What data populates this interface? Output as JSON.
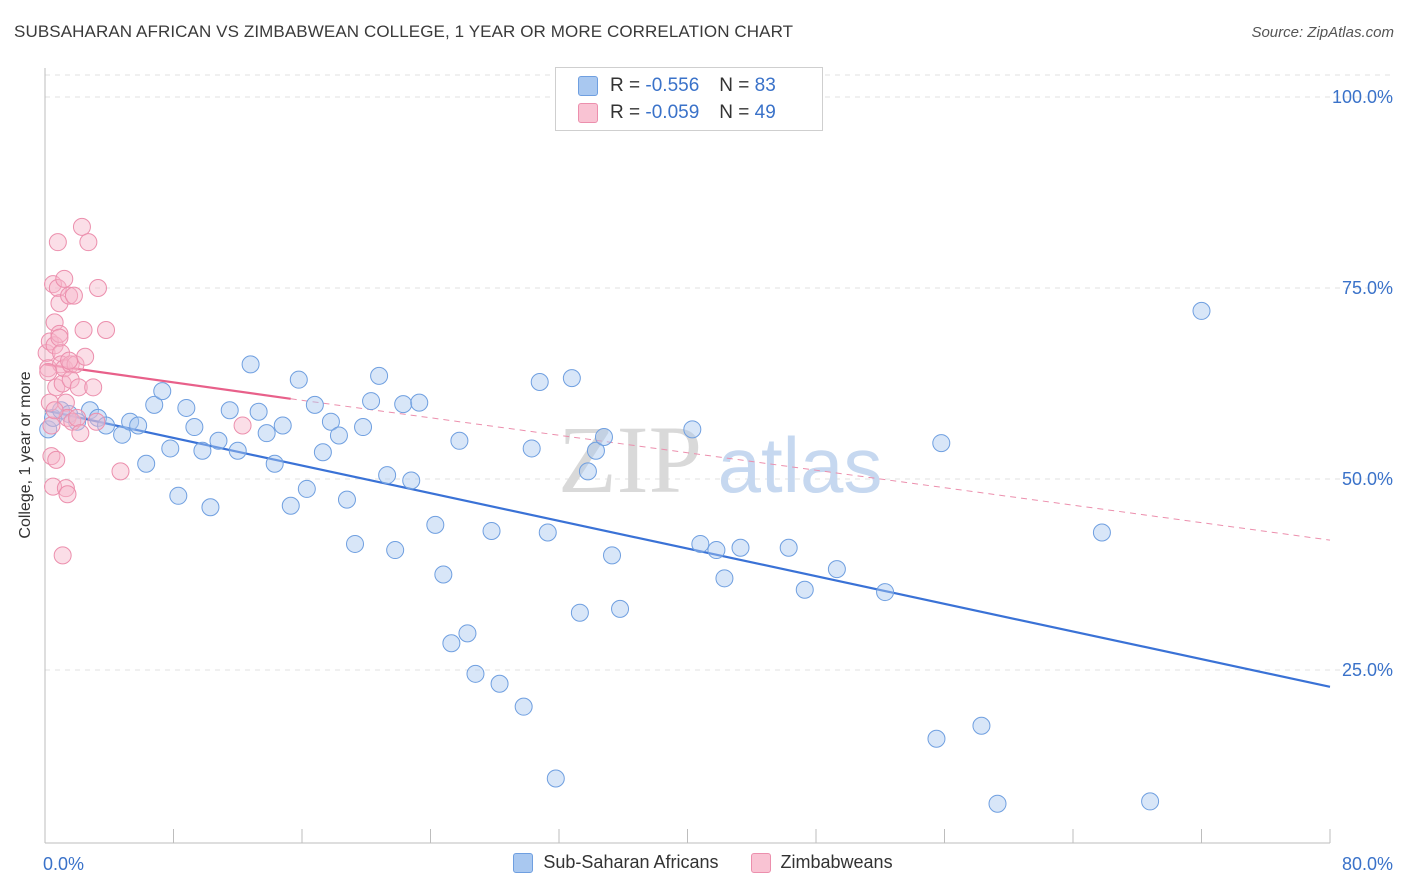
{
  "title": "SUBSAHARAN AFRICAN VS ZIMBABWEAN COLLEGE, 1 YEAR OR MORE CORRELATION CHART",
  "source": "Source: ZipAtlas.com",
  "watermark": {
    "zip": "ZIP",
    "atlas": "atlas"
  },
  "legend": {
    "rows": [
      {
        "r_label": "R =",
        "r_value": "-0.556",
        "n_label": "N =",
        "n_value": "83",
        "color": "#a9c8f0",
        "border": "#6f9fe0"
      },
      {
        "r_label": "R =",
        "r_value": "-0.059",
        "n_label": "N =",
        "n_value": "49",
        "color": "#f9c3d3",
        "border": "#ec8fad"
      }
    ]
  },
  "bottom_legend": [
    "Sub-Saharan Africans",
    "Zimbabweans"
  ],
  "chart_data": {
    "type": "scatter",
    "xlabel": "",
    "ylabel": "College, 1 year or more",
    "xlim": [
      0,
      80
    ],
    "ylim": [
      0,
      105
    ],
    "x_tick_labels": [
      "0.0%",
      "80.0%"
    ],
    "y_ticks": [
      25,
      50,
      75,
      100
    ],
    "y_tick_labels": [
      "25.0%",
      "50.0%",
      "75.0%",
      "100.0%"
    ],
    "grid": "horizontal dashed",
    "colors": {
      "blue": "#3a72d6",
      "blue_fill": "#a9c8f0",
      "pink": "#e8608a",
      "pink_fill": "#f7b5c9",
      "tick_label": "#3a72c9"
    },
    "series": [
      {
        "name": "Sub-Saharan Africans",
        "color": "#3a72d6",
        "trend": {
          "x": [
            0,
            80
          ],
          "y": [
            59.0,
            22.8
          ],
          "style": "solid"
        },
        "points": [
          [
            0.2,
            56.5
          ],
          [
            0.5,
            58.0
          ],
          [
            1.0,
            59.0
          ],
          [
            1.5,
            58.5
          ],
          [
            2.0,
            57.5
          ],
          [
            2.8,
            59.0
          ],
          [
            3.3,
            58.0
          ],
          [
            3.8,
            57.0
          ],
          [
            4.8,
            55.8
          ],
          [
            5.3,
            57.5
          ],
          [
            5.8,
            57.0
          ],
          [
            6.3,
            52.0
          ],
          [
            6.8,
            59.7
          ],
          [
            7.3,
            61.5
          ],
          [
            7.8,
            54.0
          ],
          [
            8.3,
            47.8
          ],
          [
            8.8,
            59.3
          ],
          [
            9.3,
            56.8
          ],
          [
            9.8,
            53.7
          ],
          [
            10.3,
            46.3
          ],
          [
            10.8,
            55.0
          ],
          [
            11.5,
            59.0
          ],
          [
            12.0,
            53.7
          ],
          [
            12.8,
            65.0
          ],
          [
            13.3,
            58.8
          ],
          [
            13.8,
            56.0
          ],
          [
            14.3,
            52.0
          ],
          [
            14.8,
            57.0
          ],
          [
            15.3,
            46.5
          ],
          [
            15.8,
            63.0
          ],
          [
            16.3,
            48.7
          ],
          [
            16.8,
            59.7
          ],
          [
            17.3,
            53.5
          ],
          [
            17.8,
            57.5
          ],
          [
            18.3,
            55.7
          ],
          [
            18.8,
            47.3
          ],
          [
            19.3,
            41.5
          ],
          [
            19.8,
            56.8
          ],
          [
            20.3,
            60.2
          ],
          [
            20.8,
            63.5
          ],
          [
            21.3,
            50.5
          ],
          [
            21.8,
            40.7
          ],
          [
            22.3,
            59.8
          ],
          [
            22.8,
            49.8
          ],
          [
            23.3,
            60.0
          ],
          [
            24.3,
            44.0
          ],
          [
            24.8,
            37.5
          ],
          [
            25.3,
            28.5
          ],
          [
            25.8,
            55.0
          ],
          [
            26.3,
            29.8
          ],
          [
            26.8,
            24.5
          ],
          [
            27.8,
            43.2
          ],
          [
            28.3,
            23.2
          ],
          [
            29.8,
            20.2
          ],
          [
            30.3,
            54.0
          ],
          [
            30.8,
            62.7
          ],
          [
            31.3,
            43.0
          ],
          [
            31.8,
            10.8
          ],
          [
            32.8,
            63.2
          ],
          [
            33.3,
            32.5
          ],
          [
            33.8,
            51.0
          ],
          [
            34.3,
            53.7
          ],
          [
            34.8,
            55.5
          ],
          [
            35.3,
            40.0
          ],
          [
            35.8,
            33.0
          ],
          [
            40.3,
            56.5
          ],
          [
            40.8,
            41.5
          ],
          [
            41.8,
            40.7
          ],
          [
            42.3,
            37.0
          ],
          [
            43.3,
            41.0
          ],
          [
            46.3,
            41.0
          ],
          [
            47.3,
            35.5
          ],
          [
            49.3,
            38.2
          ],
          [
            52.3,
            35.2
          ],
          [
            55.5,
            16.0
          ],
          [
            55.8,
            54.7
          ],
          [
            58.3,
            17.7
          ],
          [
            59.3,
            7.5
          ],
          [
            65.8,
            43.0
          ],
          [
            68.8,
            7.8
          ],
          [
            72.0,
            72.0
          ]
        ]
      },
      {
        "name": "Zimbabweans",
        "color": "#e8608a",
        "trend": {
          "x": [
            0,
            15.3
          ],
          "y": [
            65.0,
            60.5
          ],
          "style": "solid",
          "extended": {
            "x": [
              15.3,
              80
            ],
            "y": [
              60.5,
              42.0
            ],
            "style": "dashed"
          }
        },
        "points": [
          [
            0.1,
            66.5
          ],
          [
            0.2,
            64.5
          ],
          [
            0.3,
            68.0
          ],
          [
            0.3,
            60.0
          ],
          [
            0.4,
            57.0
          ],
          [
            0.4,
            53.0
          ],
          [
            0.5,
            49.0
          ],
          [
            0.5,
            75.5
          ],
          [
            0.6,
            70.5
          ],
          [
            0.6,
            67.5
          ],
          [
            0.7,
            62.0
          ],
          [
            0.7,
            52.5
          ],
          [
            0.8,
            81.0
          ],
          [
            0.8,
            75.0
          ],
          [
            0.9,
            73.0
          ],
          [
            0.9,
            69.0
          ],
          [
            1.0,
            66.5
          ],
          [
            1.0,
            65.0
          ],
          [
            1.1,
            62.5
          ],
          [
            1.1,
            40.0
          ],
          [
            1.2,
            76.2
          ],
          [
            1.2,
            64.5
          ],
          [
            1.3,
            60.0
          ],
          [
            1.3,
            48.8
          ],
          [
            1.4,
            58.0
          ],
          [
            1.4,
            48.0
          ],
          [
            1.5,
            74.0
          ],
          [
            1.6,
            65.0
          ],
          [
            1.6,
            63.0
          ],
          [
            1.7,
            57.5
          ],
          [
            1.8,
            74.0
          ],
          [
            1.9,
            65.0
          ],
          [
            2.0,
            58.0
          ],
          [
            2.1,
            62.0
          ],
          [
            2.2,
            56.0
          ],
          [
            2.3,
            83.0
          ],
          [
            2.4,
            69.5
          ],
          [
            2.5,
            66.0
          ],
          [
            2.7,
            81.0
          ],
          [
            3.0,
            62.0
          ],
          [
            3.2,
            57.5
          ],
          [
            3.3,
            75.0
          ],
          [
            3.8,
            69.5
          ],
          [
            4.7,
            51.0
          ],
          [
            12.3,
            57.0
          ],
          [
            0.2,
            64.0
          ],
          [
            0.9,
            68.5
          ],
          [
            1.5,
            65.5
          ],
          [
            0.6,
            59.0
          ]
        ]
      }
    ]
  }
}
